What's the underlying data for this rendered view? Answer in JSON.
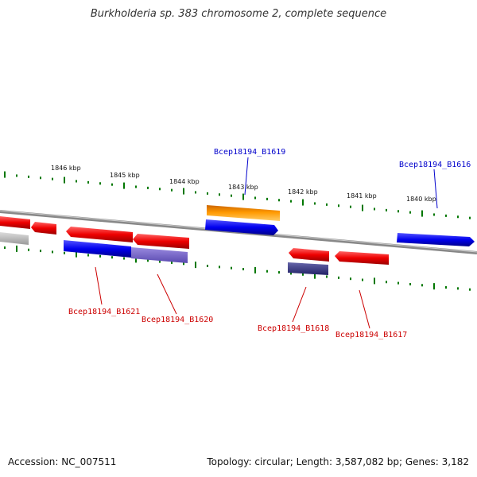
{
  "title": "Burkholderia sp. 383 chromosome 2, complete sequence",
  "accession_label": "Accession: NC_007511",
  "topology_label": "Topology: circular; Length: 3,587,082 bp; Genes: 3,182",
  "scale_labels": [
    "1846 kbp",
    "1845 kbp",
    "1844 kbp",
    "1843 kbp",
    "1842 kbp",
    "1841 kbp",
    "1840 kbp"
  ],
  "gene_labels": {
    "b1616": "Bcep18194_B1616",
    "b1617": "Bcep18194_B1617",
    "b1618": "Bcep18194_B1618",
    "b1619": "Bcep18194_B1619",
    "b1620": "Bcep18194_B1620",
    "b1621": "Bcep18194_B1621"
  },
  "colors": {
    "forward_gene": "#0000ee",
    "reverse_gene": "#ee0000",
    "highlight_gene": "#ff9900",
    "forward_label": "#0000cc",
    "reverse_label": "#cc0000",
    "tick": "#007700",
    "backbone": "#888888"
  }
}
